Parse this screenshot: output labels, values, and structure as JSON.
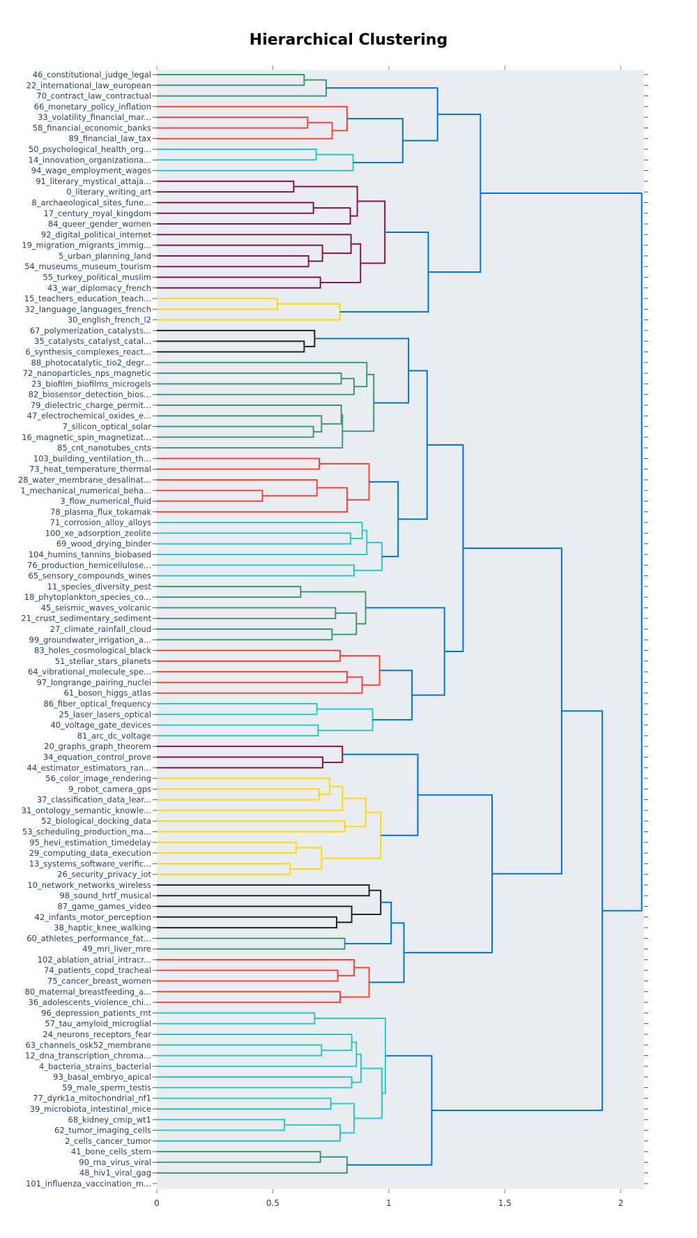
{
  "chart_data": {
    "type": "dendrogram",
    "title": "Hierarchical Clustering",
    "orientation": "left-to-right (leaves on left, root on right)",
    "xlabel": "",
    "ylabel": "",
    "xlim": [
      0,
      2.1
    ],
    "x_ticks": [
      "0",
      "0.5",
      "1",
      "1.5",
      "2"
    ],
    "x_tick_values": [
      0,
      0.5,
      1,
      1.5,
      2
    ],
    "background": "#e9edf1",
    "colors": {
      "green": "#3d9970",
      "red": "#ff4136",
      "cyan": "#2ac9c9",
      "purple": "#85144b",
      "yellow": "#ffdc00",
      "black": "#222222",
      "link_blue": "#0074d9"
    },
    "leaves": [
      "46_constitutional_judge_legal",
      "22_international_law_european",
      "70_contract_law_contractual",
      "66_monetary_policy_inflation",
      "33_volatility_financial_mar...",
      "58_financial_economic_banks",
      "89_financial_law_tax",
      "50_psychological_health_org...",
      "14_innovation_organizationa...",
      "94_wage_employment_wages",
      "91_literary_mystical_attaja...",
      "0_literary_writing_art",
      "8_archaeological_sites_fune...",
      "17_century_royal_kingdom",
      "84_queer_gender_women",
      "92_digital_political_internet",
      "19_migration_migrants_immig...",
      "5_urban_planning_land",
      "54_museums_museum_tourism",
      "55_turkey_political_muslim",
      "43_war_diplomacy_french",
      "15_teachers_education_teach...",
      "32_language_languages_french",
      "30_english_french_l2",
      "67_polymerization_catalysts...",
      "35_catalysts_catalyst_catal...",
      "6_synthesis_complexes_react...",
      "88_photocatalytic_tio2_degr...",
      "72_nanoparticles_nps_magnetic",
      "23_biofilm_biofilms_microgels",
      "82_biosensor_detection_bios...",
      "79_dielectric_charge_permit...",
      "47_electrochemical_oxides_e...",
      "7_silicon_optical_solar",
      "16_magnetic_spin_magnetizat...",
      "85_cnt_nanotubes_cnts",
      "103_building_ventilation_th...",
      "73_heat_temperature_thermal",
      "28_water_membrane_desalinat...",
      "1_mechanical_numerical_beha...",
      "3_flow_numerical_fluid",
      "78_plasma_flux_tokamak",
      "71_corrosion_alloy_alloys",
      "100_xe_adsorption_zeolite",
      "69_wood_drying_binder",
      "104_humins_tannins_biobased",
      "76_production_hemicellulose...",
      "65_sensory_compounds_wines",
      "11_species_diversity_pest",
      "18_phytoplankton_species_co...",
      "45_seismic_waves_volcanic",
      "21_crust_sedimentary_sediment",
      "27_climate_rainfall_cloud",
      "99_groundwater_irrigation_a...",
      "83_holes_cosmological_black",
      "51_stellar_stars_planets",
      "64_vibrational_molecule_spe...",
      "97_longrange_pairing_nuclei",
      "61_boson_higgs_atlas",
      "86_fiber_optical_frequency",
      "25_laser_lasers_optical",
      "40_voltage_gate_devices",
      "81_arc_dc_voltage",
      "20_graphs_graph_theorem",
      "34_equation_control_prove",
      "44_estimator_estimators_ran...",
      "56_color_image_rendering",
      "9_robot_camera_gps",
      "37_classification_data_lear...",
      "31_ontology_semantic_knowle...",
      "52_biological_docking_data",
      "53_scheduling_production_ma...",
      "95_hevi_estimation_timedelay",
      "29_computing_data_execution",
      "13_systems_software_verific...",
      "26_security_privacy_iot",
      "10_network_networks_wireless",
      "98_sound_hrtf_musical",
      "87_game_games_video",
      "42_infants_motor_perception",
      "38_haptic_knee_walking",
      "60_athletes_performance_fat...",
      "49_mri_liver_mre",
      "102_ablation_atrial_intracr...",
      "74_patients_copd_tracheal",
      "75_cancer_breast_women",
      "80_maternal_breastfeeding_a...",
      "36_adolescents_violence_chi...",
      "96_depression_patients_rnt",
      "57_tau_amyloid_microglial",
      "24_neurons_receptors_fear",
      "63_channels_osk52_membrane",
      "12_dna_transcription_chroma...",
      "4_bacteria_strains_bacterial",
      "93_basal_embryo_apical",
      "59_male_sperm_testis",
      "77_dyrk1a_mitochondrial_nf1",
      "39_microbiota_intestinal_mice",
      "68_kidney_cmip_wt1",
      "62_tumor_imaging_cells",
      "2_cells_cancer_tumor",
      "41_bone_cells_stem",
      "90_rna_virus_viral",
      "48_hiv1_viral_gag",
      "101_influenza_vaccination_m..."
    ],
    "tree": [
      2.09,
      "blue",
      [
        1.395,
        "blue",
        [
          1.21,
          "blue",
          [
            0.73,
            "green",
            [
              0.635,
              "green",
              0,
              1
            ],
            2
          ],
          [
            1.06,
            "blue",
            [
              0.82,
              "red",
              3,
              [
                0.756,
                "red",
                [
                  0.65,
                  "red",
                  4,
                  5
                ],
                6
              ]
            ],
            [
              0.846,
              "cyan",
              [
                0.687,
                "cyan",
                7,
                8
              ],
              9
            ]
          ]
        ],
        [
          1.17,
          "blue",
          [
            0.983,
            "purple",
            [
              0.864,
              "purple",
              [
                0.59,
                "purple",
                10,
                11
              ],
              [
                0.834,
                "purple",
                [
                  0.675,
                  "purple",
                  12,
                  13
                ],
                14
              ]
            ],
            [
              0.878,
              "purple",
              [
                0.837,
                "purple",
                15,
                [
                  0.714,
                  "purple",
                  16,
                  [
                    0.654,
                    "purple",
                    17,
                    18
                  ]
                ]
              ],
              [
                0.705,
                "purple",
                19,
                20
              ]
            ]
          ],
          [
            0.789,
            "yellow",
            [
              0.52,
              "yellow",
              21,
              22
            ],
            23
          ]
        ]
      ],
      [
        1.92,
        "blue",
        [
          1.745,
          "blue",
          [
            1.32,
            "blue",
            [
              1.165,
              "blue",
              [
                1.085,
                "blue",
                [
                  0.68,
                  "black",
                  24,
                  [
                    0.635,
                    "black",
                    25,
                    26
                  ]
                ],
                [
                  0.935,
                  "green",
                  [
                    0.905,
                    "green",
                    27,
                    [
                      0.85,
                      "green",
                      [
                        0.795,
                        "green",
                        28,
                        29
                      ],
                      30
                    ]
                  ],
                  [
                    0.8,
                    "green",
                    [
                      0.795,
                      "green",
                      31,
                      [
                        0.71,
                        "green",
                        32,
                        [
                          0.675,
                          "green",
                          33,
                          34
                        ]
                      ]
                    ],
                    35
                  ]
                ]
              ],
              [
                1.04,
                "blue",
                [
                  0.915,
                  "red",
                  [
                    0.7,
                    "red",
                    36,
                    37
                  ],
                  [
                    0.82,
                    "red",
                    [
                      0.69,
                      "red",
                      38,
                      [
                        0.455,
                        "red",
                        39,
                        40
                      ]
                    ],
                    41
                  ]
                ],
                [
                  0.97,
                  "cyan",
                  [
                    0.905,
                    "cyan",
                    [
                      0.885,
                      "cyan",
                      42,
                      [
                        0.835,
                        "cyan",
                        43,
                        44
                      ]
                    ],
                    45
                  ],
                  [
                    0.85,
                    "cyan",
                    46,
                    47
                  ]
                ]
              ]
            ],
            [
              1.24,
              "blue",
              [
                0.9,
                "green",
                [
                  0.62,
                  "green",
                  48,
                  49
                ],
                [
                  0.86,
                  "green",
                  [
                    0.77,
                    "green",
                    50,
                    51
                  ],
                  [
                    0.755,
                    "green",
                    52,
                    53
                  ]
                ]
              ],
              [
                1.1,
                "blue",
                [
                  0.96,
                  "red",
                  [
                    0.79,
                    "red",
                    54,
                    55
                  ],
                  [
                    0.885,
                    "red",
                    [
                      0.82,
                      "red",
                      56,
                      57
                    ],
                    58
                  ]
                ],
                [
                  0.93,
                  "cyan",
                  [
                    0.69,
                    "cyan",
                    59,
                    60
                  ],
                  [
                    0.695,
                    "cyan",
                    61,
                    62
                  ]
                ]
              ]
            ]
          ],
          [
            1.445,
            "blue",
            [
              1.125,
              "blue",
              [
                0.8,
                "purple",
                63,
                [
                  0.715,
                  "purple",
                  64,
                  65
                ]
              ],
              [
                0.965,
                "yellow",
                [
                  0.9,
                  "yellow",
                  [
                    0.8,
                    "yellow",
                    [
                      0.745,
                      "yellow",
                      66,
                      [
                        0.7,
                        "yellow",
                        67,
                        68
                      ]
                    ],
                    69
                  ],
                  [
                    0.81,
                    "yellow",
                    70,
                    71
                  ]
                ],
                [
                  0.71,
                  "yellow",
                  [
                    0.6,
                    "yellow",
                    72,
                    73
                  ],
                  [
                    0.575,
                    "yellow",
                    74,
                    75
                  ]
                ]
              ]
            ],
            [
              1.065,
              "blue",
              [
                1.01,
                "blue",
                [
                  0.965,
                  "black",
                  [
                    0.915,
                    "black",
                    76,
                    77
                  ],
                  [
                    0.84,
                    "black",
                    78,
                    [
                      0.775,
                      "black",
                      79,
                      80
                    ]
                  ]
                ],
                [
                  0.81,
                  "green",
                  81,
                  82
                ]
              ],
              [
                0.915,
                "red",
                [
                  0.85,
                  "red",
                  83,
                  [
                    0.78,
                    "red",
                    84,
                    85
                  ]
                ],
                [
                  0.79,
                  "red",
                  86,
                  87
                ]
              ]
            ]
          ]
        ],
        [
          1.185,
          "blue",
          [
            0.985,
            "cyan",
            [
              0.68,
              "cyan",
              88,
              89
            ],
            [
              0.97,
              "cyan",
              [
                0.88,
                "cyan",
                [
                  0.86,
                  "cyan",
                  [
                    0.84,
                    "cyan",
                    90,
                    [
                      0.71,
                      "cyan",
                      91,
                      92
                    ]
                  ],
                  93
                ],
                [
                  0.84,
                  "cyan",
                  94,
                  95
                ]
              ],
              [
                0.85,
                "cyan",
                [
                  0.75,
                  "cyan",
                  96,
                  97
                ],
                [
                  0.79,
                  "cyan",
                  [
                    0.55,
                    "cyan",
                    98,
                    99
                  ],
                  100
                ]
              ]
            ]
          ],
          [
            0.82,
            "green",
            [
              0.705,
              "green",
              101,
              102
            ],
            103
          ]
        ]
      ]
    ]
  }
}
